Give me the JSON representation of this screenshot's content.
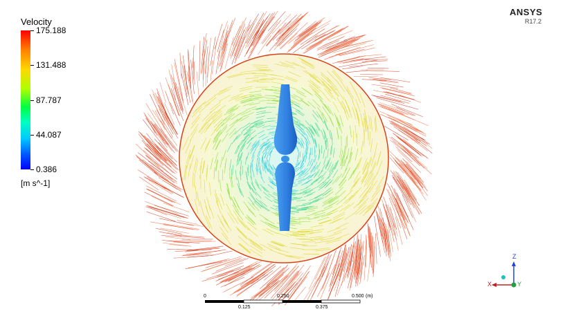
{
  "legend": {
    "title": "Velocity",
    "values": [
      "175.188",
      "131.488",
      "87.787",
      "44.087",
      "0.386"
    ],
    "unit": "[m s^-1]"
  },
  "brand": {
    "name": "ANSYS",
    "version": "R17.2"
  },
  "scale_bar": {
    "top_labels": [
      "0",
      "0.250",
      "0.500"
    ],
    "unit": "(m)",
    "bottom_labels": [
      "0.125",
      "0.375"
    ]
  },
  "triad": {
    "z": "Z",
    "x": "X",
    "y": "Y"
  },
  "colors": {
    "outer": "#e03010",
    "inner_yellow": "#e6e640",
    "inner_green": "#70e060",
    "core_cyan": "#40d8e8",
    "blade": "#3a8ee8"
  }
}
